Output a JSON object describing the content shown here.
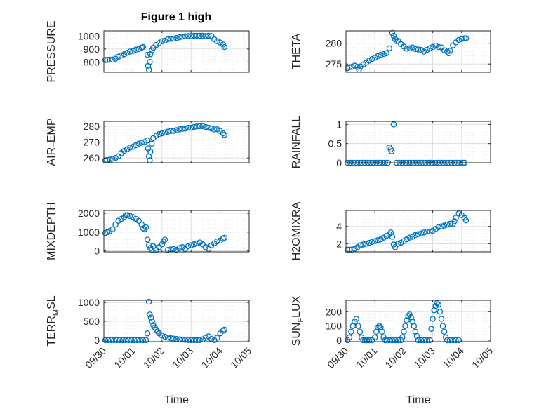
{
  "figure": {
    "title": "Figure 1 high"
  },
  "style": {
    "marker_color": "#0072BD",
    "axis_color": "#262626",
    "grid_color": "#d9d9d9",
    "background": "#ffffff"
  },
  "chart_data": [
    {
      "type": "scatter",
      "ylabel_main": "PRESSURE",
      "ylabel_sub": "",
      "ylabel_tail": "",
      "ylim": [
        720,
        1040
      ],
      "yticks": [
        800,
        900,
        1000
      ],
      "yticklabels": [
        "800",
        "900",
        "1000"
      ],
      "xlim": [
        0,
        5
      ],
      "xticks": [
        0,
        1,
        2,
        3,
        4,
        5
      ],
      "xticklabels": [
        "09/30",
        "10/01",
        "10/02",
        "10/03",
        "10/04",
        "10/05"
      ],
      "show_xticklabels": false,
      "xlabel": "",
      "grid": true,
      "x": [
        0.05,
        0.12,
        0.2,
        0.3,
        0.4,
        0.5,
        0.6,
        0.7,
        0.8,
        0.9,
        1.0,
        1.1,
        1.2,
        1.3,
        1.35,
        1.5,
        1.52,
        1.55,
        1.58,
        1.6,
        1.65,
        1.7,
        1.8,
        1.9,
        2.0,
        2.1,
        2.2,
        2.3,
        2.4,
        2.5,
        2.6,
        2.7,
        2.8,
        2.9,
        3.0,
        3.1,
        3.2,
        3.3,
        3.4,
        3.5,
        3.6,
        3.7,
        3.8,
        3.9,
        4.0,
        4.1,
        4.15
      ],
      "y": [
        815,
        816,
        817,
        818,
        825,
        840,
        850,
        860,
        870,
        880,
        885,
        895,
        900,
        910,
        915,
        855,
        770,
        740,
        800,
        860,
        890,
        910,
        930,
        945,
        960,
        965,
        975,
        978,
        980,
        985,
        990,
        995,
        998,
        1000,
        1000,
        1002,
        1002,
        1002,
        1002,
        1000,
        1002,
        1000,
        975,
        960,
        950,
        935,
        915
      ]
    },
    {
      "type": "scatter",
      "ylabel_main": "THETA",
      "ylabel_sub": "",
      "ylabel_tail": "",
      "ylim": [
        273,
        283
      ],
      "yticks": [
        275,
        280
      ],
      "yticklabels": [
        "275",
        "280"
      ],
      "xlim": [
        0,
        5
      ],
      "xticks": [
        0,
        1,
        2,
        3,
        4,
        5
      ],
      "xticklabels": [
        "09/30",
        "10/01",
        "10/02",
        "10/03",
        "10/04",
        "10/05"
      ],
      "show_xticklabels": false,
      "xlabel": "",
      "grid": true,
      "x": [
        0.05,
        0.12,
        0.2,
        0.3,
        0.4,
        0.45,
        0.5,
        0.6,
        0.7,
        0.8,
        0.9,
        1.0,
        1.1,
        1.2,
        1.3,
        1.4,
        1.5,
        1.6,
        1.65,
        1.7,
        1.75,
        1.8,
        1.9,
        2.0,
        2.1,
        2.2,
        2.3,
        2.4,
        2.5,
        2.6,
        2.7,
        2.8,
        2.9,
        3.0,
        3.1,
        3.2,
        3.3,
        3.4,
        3.5,
        3.55,
        3.6,
        3.7,
        3.8,
        3.9,
        4.0,
        4.1,
        4.15
      ],
      "y": [
        274.0,
        274.2,
        274.3,
        274.6,
        274.3,
        273.6,
        274.4,
        274.9,
        275.3,
        275.8,
        276.2,
        276.5,
        276.9,
        277.2,
        277.4,
        277.6,
        278.8,
        282.5,
        281.8,
        281.0,
        280.5,
        280.6,
        279.8,
        279.2,
        278.7,
        278.8,
        279.0,
        278.6,
        278.5,
        278.4,
        278.0,
        278.4,
        278.8,
        279.1,
        279.4,
        279.1,
        279.0,
        278.3,
        278.0,
        277.6,
        278.2,
        279.5,
        280.2,
        280.8,
        281.0,
        281.2,
        281.2
      ]
    },
    {
      "type": "scatter",
      "ylabel_main": "AIR",
      "ylabel_sub": "T",
      "ylabel_tail": "EMP",
      "ylim": [
        257,
        283
      ],
      "yticks": [
        260,
        270,
        280
      ],
      "yticklabels": [
        "260",
        "270",
        "280"
      ],
      "xlim": [
        0,
        5
      ],
      "xticks": [
        0,
        1,
        2,
        3,
        4,
        5
      ],
      "xticklabels": [
        "09/30",
        "10/01",
        "10/02",
        "10/03",
        "10/04",
        "10/05"
      ],
      "show_xticklabels": false,
      "xlabel": "",
      "grid": true,
      "x": [
        0.05,
        0.12,
        0.2,
        0.3,
        0.4,
        0.5,
        0.6,
        0.7,
        0.8,
        0.9,
        1.0,
        1.1,
        1.2,
        1.3,
        1.4,
        1.5,
        1.52,
        1.55,
        1.58,
        1.6,
        1.65,
        1.7,
        1.8,
        1.9,
        2.0,
        2.1,
        2.2,
        2.3,
        2.4,
        2.5,
        2.6,
        2.7,
        2.8,
        2.9,
        3.0,
        3.1,
        3.2,
        3.3,
        3.4,
        3.5,
        3.6,
        3.7,
        3.8,
        3.9,
        4.0,
        4.1,
        4.15
      ],
      "y": [
        258.5,
        258.7,
        259,
        259.5,
        260,
        261,
        263,
        264.5,
        265.5,
        266.5,
        267,
        268,
        269,
        269.5,
        270,
        271,
        266,
        261,
        258.5,
        264,
        269,
        272.5,
        274,
        275,
        275.5,
        276,
        276.5,
        277,
        277,
        277.5,
        278,
        278.3,
        278.5,
        279,
        279,
        279.5,
        279.8,
        280,
        280,
        279.5,
        279,
        278.5,
        278,
        278,
        277,
        275.5,
        274.5
      ]
    },
    {
      "type": "scatter",
      "ylabel_main": "RAINFALL",
      "ylabel_sub": "",
      "ylabel_tail": "",
      "ylim": [
        0,
        1.08
      ],
      "yticks": [
        0,
        0.5,
        1
      ],
      "yticklabels": [
        "0",
        "0.5",
        "1"
      ],
      "xlim": [
        0,
        5
      ],
      "xticks": [
        0,
        1,
        2,
        3,
        4,
        5
      ],
      "xticklabels": [
        "09/30",
        "10/01",
        "10/02",
        "10/03",
        "10/04",
        "10/05"
      ],
      "show_xticklabels": false,
      "xlabel": "",
      "grid": true,
      "x": [
        0.05,
        0.15,
        0.25,
        0.35,
        0.45,
        0.55,
        0.65,
        0.75,
        0.85,
        0.95,
        1.05,
        1.15,
        1.25,
        1.35,
        1.45,
        1.5,
        1.55,
        1.58,
        1.65,
        1.75,
        1.85,
        1.95,
        2.05,
        2.15,
        2.25,
        2.35,
        2.45,
        2.55,
        2.65,
        2.75,
        2.85,
        2.95,
        3.05,
        3.15,
        3.25,
        3.35,
        3.45,
        3.55,
        3.65,
        3.75,
        3.85,
        3.95,
        4.05,
        4.1
      ],
      "y": [
        0,
        0,
        0,
        0,
        0,
        0,
        0,
        0,
        0,
        0,
        0,
        0,
        0,
        0,
        0,
        0.4,
        0.35,
        0.3,
        1.0,
        0,
        0,
        0,
        0,
        0,
        0,
        0,
        0,
        0,
        0,
        0,
        0,
        0,
        0,
        0,
        0,
        0,
        0,
        0,
        0,
        0,
        0,
        0,
        0,
        0
      ]
    },
    {
      "type": "scatter",
      "ylabel_main": "MIXDEPTH",
      "ylabel_sub": "",
      "ylabel_tail": "",
      "ylim": [
        -50,
        2150
      ],
      "yticks": [
        0,
        1000,
        2000
      ],
      "yticklabels": [
        "0",
        "1000",
        "2000"
      ],
      "xlim": [
        0,
        5
      ],
      "xticks": [
        0,
        1,
        2,
        3,
        4,
        5
      ],
      "xticklabels": [
        "09/30",
        "10/01",
        "10/02",
        "10/03",
        "10/04",
        "10/05"
      ],
      "show_xticklabels": false,
      "xlabel": "",
      "grid": true,
      "x": [
        0.05,
        0.12,
        0.2,
        0.3,
        0.4,
        0.5,
        0.6,
        0.7,
        0.75,
        0.8,
        0.9,
        1.0,
        1.1,
        1.2,
        1.3,
        1.35,
        1.4,
        1.45,
        1.5,
        1.55,
        1.6,
        1.65,
        1.7,
        1.75,
        1.8,
        1.9,
        2.0,
        2.05,
        2.1,
        2.2,
        2.3,
        2.4,
        2.5,
        2.6,
        2.7,
        2.8,
        2.9,
        3.0,
        3.1,
        3.2,
        3.3,
        3.4,
        3.5,
        3.6,
        3.7,
        3.8,
        3.9,
        4.0,
        4.1,
        4.15
      ],
      "y": [
        950,
        1000,
        1050,
        1150,
        1400,
        1600,
        1700,
        1800,
        1900,
        1900,
        1850,
        1800,
        1700,
        1600,
        1400,
        1200,
        1150,
        1250,
        600,
        300,
        150,
        50,
        250,
        150,
        50,
        200,
        350,
        500,
        600,
        50,
        80,
        100,
        60,
        150,
        200,
        100,
        250,
        300,
        350,
        400,
        450,
        350,
        200,
        100,
        300,
        400,
        500,
        550,
        650,
        700
      ]
    },
    {
      "type": "scatter",
      "ylabel_main": "H2OMIXRA",
      "ylabel_sub": "",
      "ylabel_tail": "",
      "ylim": [
        1.05,
        5.85
      ],
      "yticks": [
        2,
        4
      ],
      "yticklabels": [
        "2",
        "4"
      ],
      "xlim": [
        0,
        5
      ],
      "xticks": [
        0,
        1,
        2,
        3,
        4,
        5
      ],
      "xticklabels": [
        "09/30",
        "10/01",
        "10/02",
        "10/03",
        "10/04",
        "10/05"
      ],
      "show_xticklabels": false,
      "xlabel": "",
      "grid": true,
      "x": [
        0.05,
        0.12,
        0.2,
        0.3,
        0.4,
        0.5,
        0.6,
        0.7,
        0.8,
        0.9,
        1.0,
        1.1,
        1.2,
        1.3,
        1.4,
        1.5,
        1.55,
        1.6,
        1.65,
        1.7,
        1.8,
        1.9,
        2.0,
        2.1,
        2.2,
        2.3,
        2.4,
        2.5,
        2.6,
        2.7,
        2.8,
        2.9,
        3.0,
        3.1,
        3.2,
        3.3,
        3.4,
        3.5,
        3.6,
        3.7,
        3.75,
        3.8,
        3.9,
        4.0,
        4.1,
        4.15
      ],
      "y": [
        1.3,
        1.3,
        1.3,
        1.4,
        1.6,
        1.8,
        1.9,
        2.0,
        2.1,
        2.2,
        2.3,
        2.4,
        2.5,
        2.7,
        2.9,
        3.1,
        3.3,
        2.8,
        1.9,
        1.6,
        2.0,
        2.1,
        2.3,
        2.5,
        2.7,
        2.8,
        3.0,
        3.1,
        3.2,
        3.3,
        3.4,
        3.4,
        3.5,
        3.7,
        3.9,
        4.0,
        4.1,
        4.2,
        4.3,
        4.3,
        4.6,
        5.0,
        5.5,
        5.3,
        5.0,
        4.7
      ]
    },
    {
      "type": "scatter",
      "ylabel_main": "TERR",
      "ylabel_sub": "M",
      "ylabel_tail": "SL",
      "ylim": [
        -40,
        1060
      ],
      "yticks": [
        0,
        500,
        1000
      ],
      "yticklabels": [
        "0",
        "500",
        "1000"
      ],
      "xlim": [
        0,
        5
      ],
      "xticks": [
        0,
        1,
        2,
        3,
        4,
        5
      ],
      "xticklabels": [
        "09/30",
        "10/01",
        "10/02",
        "10/03",
        "10/04",
        "10/05"
      ],
      "show_xticklabels": true,
      "xlabel": "Time",
      "grid": true,
      "x": [
        0.05,
        0.15,
        0.25,
        0.35,
        0.45,
        0.55,
        0.65,
        0.75,
        0.85,
        0.95,
        1.05,
        1.15,
        1.25,
        1.35,
        1.45,
        1.5,
        1.55,
        1.58,
        1.62,
        1.66,
        1.7,
        1.75,
        1.8,
        1.85,
        1.9,
        2.0,
        2.1,
        2.2,
        2.3,
        2.4,
        2.5,
        2.6,
        2.7,
        2.8,
        2.9,
        3.0,
        3.1,
        3.2,
        3.3,
        3.4,
        3.5,
        3.6,
        3.7,
        3.8,
        3.9,
        4.0,
        4.1,
        4.15
      ],
      "y": [
        0,
        0,
        0,
        0,
        0,
        0,
        0,
        0,
        0,
        0,
        0,
        0,
        0,
        0,
        0,
        180,
        1020,
        680,
        600,
        500,
        400,
        340,
        280,
        230,
        180,
        120,
        90,
        70,
        50,
        40,
        30,
        20,
        15,
        10,
        5,
        0,
        0,
        0,
        0,
        20,
        60,
        100,
        30,
        0,
        60,
        180,
        250,
        280
      ]
    },
    {
      "type": "scatter",
      "ylabel_main": "SUN",
      "ylabel_sub": "F",
      "ylabel_tail": "LUX",
      "ylim": [
        -10,
        280
      ],
      "yticks": [
        0,
        100,
        200
      ],
      "yticklabels": [
        "0",
        "100",
        "200"
      ],
      "xlim": [
        0,
        5
      ],
      "xticks": [
        0,
        1,
        2,
        3,
        4,
        5
      ],
      "xticklabels": [
        "09/30",
        "10/01",
        "10/02",
        "10/03",
        "10/04",
        "10/05"
      ],
      "show_xticklabels": true,
      "xlabel": "Time",
      "grid": true,
      "x": [
        0.05,
        0.12,
        0.18,
        0.24,
        0.3,
        0.36,
        0.42,
        0.48,
        0.54,
        0.6,
        0.66,
        0.72,
        0.8,
        0.9,
        1.0,
        1.05,
        1.1,
        1.15,
        1.2,
        1.25,
        1.3,
        1.35,
        1.4,
        1.5,
        1.6,
        1.7,
        1.8,
        1.9,
        1.95,
        2.0,
        2.05,
        2.1,
        2.15,
        2.2,
        2.25,
        2.3,
        2.35,
        2.4,
        2.45,
        2.5,
        2.6,
        2.7,
        2.8,
        2.9,
        2.95,
        3.0,
        3.05,
        3.1,
        3.15,
        3.2,
        3.25,
        3.3,
        3.35,
        3.4,
        3.45,
        3.5,
        3.6,
        3.7,
        3.8,
        3.9
      ],
      "y": [
        0,
        20,
        60,
        100,
        130,
        150,
        100,
        60,
        20,
        0,
        0,
        0,
        0,
        0,
        20,
        60,
        90,
        100,
        90,
        60,
        20,
        0,
        0,
        0,
        0,
        0,
        0,
        0,
        20,
        60,
        100,
        140,
        170,
        180,
        160,
        130,
        100,
        60,
        30,
        0,
        0,
        0,
        0,
        0,
        80,
        150,
        210,
        240,
        260,
        250,
        200,
        150,
        100,
        60,
        20,
        0,
        0,
        0,
        0,
        0
      ]
    }
  ]
}
